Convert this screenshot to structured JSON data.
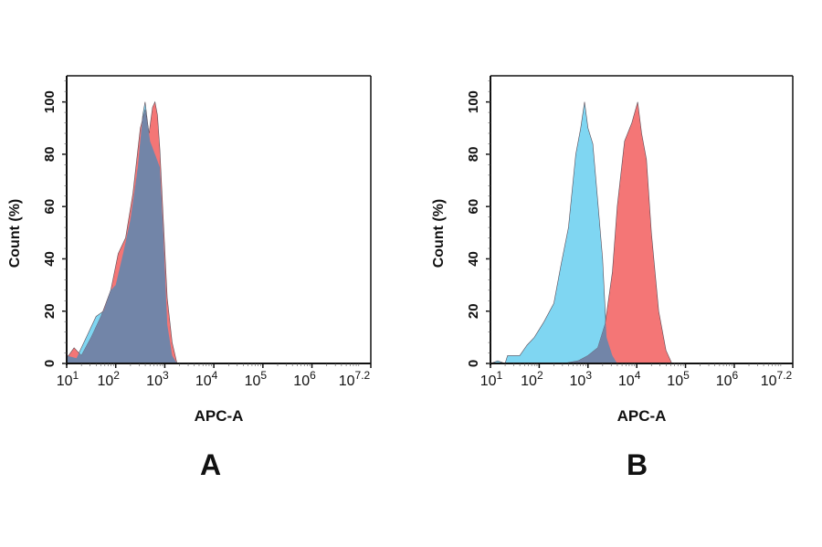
{
  "chart_data": [
    {
      "type": "area",
      "panel_label": "A",
      "xlabel": "APC-A",
      "ylabel": "Count  (%)",
      "x_scale": "log",
      "xlim_log10": [
        1,
        7.2
      ],
      "ylim": [
        0,
        110
      ],
      "x_ticks": [
        {
          "base": "10",
          "exp": "1"
        },
        {
          "base": "10",
          "exp": "2"
        },
        {
          "base": "10",
          "exp": "3"
        },
        {
          "base": "10",
          "exp": "4"
        },
        {
          "base": "10",
          "exp": "5"
        },
        {
          "base": "10",
          "exp": "6"
        },
        {
          "base": "10",
          "exp": "7.2"
        }
      ],
      "y_ticks": [
        "0",
        "20",
        "40",
        "60",
        "80",
        "100"
      ],
      "grid": false,
      "series": [
        {
          "color": "#7fd6f2",
          "points_log10x_y": [
            [
              1.0,
              3
            ],
            [
              1.2,
              2
            ],
            [
              1.4,
              10
            ],
            [
              1.6,
              18
            ],
            [
              1.75,
              20
            ],
            [
              1.9,
              28
            ],
            [
              2.0,
              30
            ],
            [
              2.15,
              42
            ],
            [
              2.3,
              55
            ],
            [
              2.45,
              75
            ],
            [
              2.55,
              95
            ],
            [
              2.6,
              100
            ],
            [
              2.65,
              92
            ],
            [
              2.7,
              85
            ],
            [
              2.8,
              80
            ],
            [
              2.9,
              75
            ],
            [
              2.97,
              50
            ],
            [
              3.05,
              15
            ],
            [
              3.15,
              3
            ],
            [
              3.25,
              0
            ]
          ]
        },
        {
          "color": "#f47676",
          "points_log10x_y": [
            [
              1.0,
              2
            ],
            [
              1.15,
              6
            ],
            [
              1.3,
              3
            ],
            [
              1.5,
              10
            ],
            [
              1.7,
              18
            ],
            [
              1.9,
              28
            ],
            [
              2.05,
              42
            ],
            [
              2.2,
              48
            ],
            [
              2.35,
              65
            ],
            [
              2.5,
              90
            ],
            [
              2.6,
              97
            ],
            [
              2.68,
              88
            ],
            [
              2.75,
              98
            ],
            [
              2.8,
              100
            ],
            [
              2.85,
              95
            ],
            [
              2.9,
              82
            ],
            [
              2.97,
              55
            ],
            [
              3.05,
              25
            ],
            [
              3.15,
              8
            ],
            [
              3.25,
              0
            ]
          ]
        }
      ],
      "overlap_color": "#7285a8"
    },
    {
      "type": "area",
      "panel_label": "B",
      "xlabel": "APC-A",
      "ylabel": "Count  (%)",
      "x_scale": "log",
      "xlim_log10": [
        1,
        7.2
      ],
      "ylim": [
        0,
        110
      ],
      "x_ticks": [
        {
          "base": "10",
          "exp": "1"
        },
        {
          "base": "10",
          "exp": "2"
        },
        {
          "base": "10",
          "exp": "3"
        },
        {
          "base": "10",
          "exp": "4"
        },
        {
          "base": "10",
          "exp": "5"
        },
        {
          "base": "10",
          "exp": "6"
        },
        {
          "base": "10",
          "exp": "7.2"
        }
      ],
      "y_ticks": [
        "0",
        "20",
        "40",
        "60",
        "80",
        "100"
      ],
      "grid": false,
      "series": [
        {
          "color": "#7fd6f2",
          "points_log10x_y": [
            [
              1.0,
              0
            ],
            [
              1.15,
              1
            ],
            [
              1.3,
              0
            ],
            [
              1.35,
              3
            ],
            [
              1.6,
              3
            ],
            [
              1.75,
              7
            ],
            [
              1.9,
              10
            ],
            [
              2.1,
              16
            ],
            [
              2.3,
              23
            ],
            [
              2.45,
              38
            ],
            [
              2.6,
              52
            ],
            [
              2.75,
              80
            ],
            [
              2.85,
              90
            ],
            [
              2.93,
              100
            ],
            [
              3.0,
              90
            ],
            [
              3.1,
              84
            ],
            [
              3.2,
              62
            ],
            [
              3.3,
              40
            ],
            [
              3.38,
              10
            ],
            [
              3.5,
              3
            ],
            [
              3.6,
              0
            ]
          ]
        },
        {
          "color": "#f47676",
          "points_log10x_y": [
            [
              2.5,
              0
            ],
            [
              2.8,
              1
            ],
            [
              3.0,
              3
            ],
            [
              3.2,
              6
            ],
            [
              3.35,
              15
            ],
            [
              3.5,
              35
            ],
            [
              3.6,
              60
            ],
            [
              3.75,
              85
            ],
            [
              3.9,
              92
            ],
            [
              4.02,
              100
            ],
            [
              4.1,
              88
            ],
            [
              4.2,
              78
            ],
            [
              4.3,
              50
            ],
            [
              4.45,
              20
            ],
            [
              4.6,
              5
            ],
            [
              4.72,
              0
            ]
          ]
        }
      ],
      "overlap_color": "#7285a8"
    }
  ]
}
